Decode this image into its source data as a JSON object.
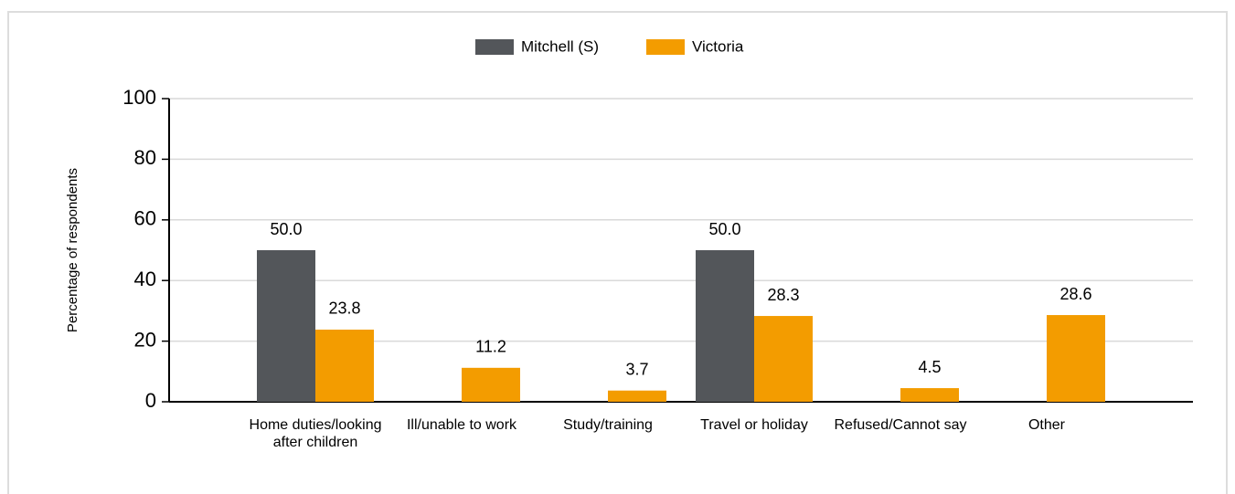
{
  "chart_data": {
    "type": "bar",
    "y_label": "Percentage of respondents",
    "categories": [
      "Home duties/looking after children",
      "Ill/unable to work",
      "Study/training",
      "Travel or holiday",
      "Refused/Cannot say",
      "Other"
    ],
    "series": [
      {
        "name": "Mitchell (S)",
        "color": "#53565a",
        "values": [
          50,
          null,
          null,
          50,
          null,
          null
        ],
        "value_labels": [
          "50.0",
          null,
          null,
          "50.0",
          null,
          null
        ]
      },
      {
        "name": "Victoria",
        "color": "#f39c00",
        "values": [
          23.8,
          11.2,
          3.7,
          28.3,
          4.5,
          28.6
        ]
      }
    ],
    "ylim": [
      0,
      100
    ],
    "yticks": [
      0,
      20,
      40,
      60,
      80,
      100
    ],
    "grid": true,
    "legend": "top"
  }
}
